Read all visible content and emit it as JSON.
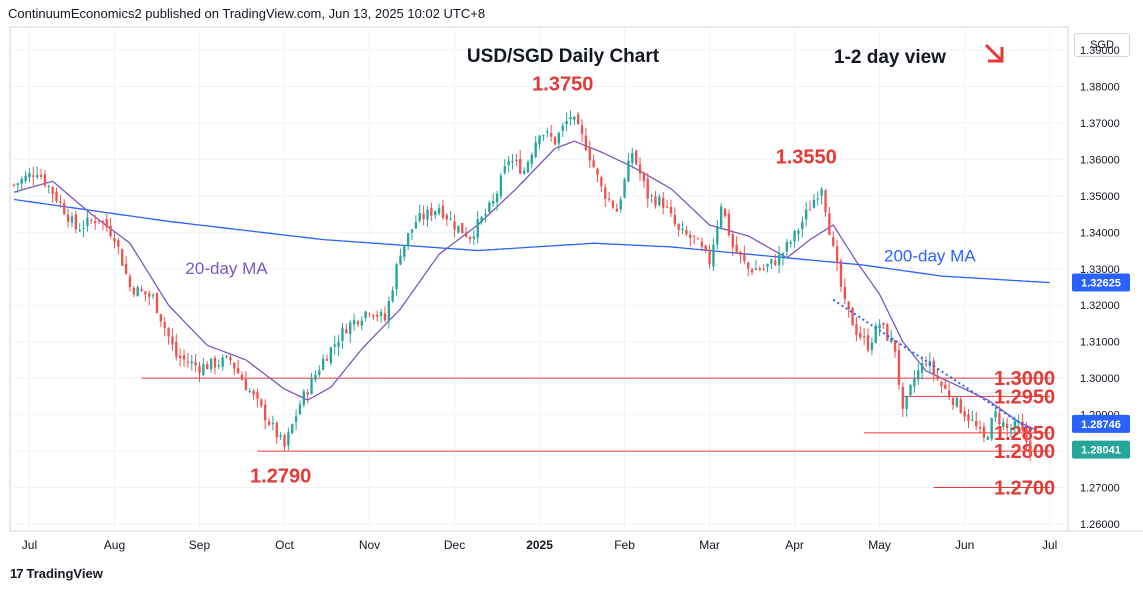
{
  "header": {
    "publisher": "ContinuumEconomics2 published on TradingView.com, Jun 13, 2025 10:02 UTC+8"
  },
  "footer": {
    "brand": "TradingView",
    "logo": "17"
  },
  "currency": "SGD",
  "colors": {
    "up": "#26a69a",
    "down": "#ef5350",
    "ma20": "#7e57c2",
    "ma200": "#2962ff",
    "level_line": "#e53935",
    "level_text": "#e53935",
    "trend": "#2962ff",
    "arrow": "#e53935"
  },
  "chart_data": {
    "type": "candlestick",
    "title": "USD/SGD Daily Chart",
    "subtitle": "1-2 day view",
    "direction_arrow": "down-right",
    "ylim": [
      1.26,
      1.39
    ],
    "y_ticks": [
      "1.26000",
      "1.27000",
      "1.28000",
      "1.29000",
      "1.30000",
      "1.31000",
      "1.32000",
      "1.33000",
      "1.34000",
      "1.35000",
      "1.36000",
      "1.37000",
      "1.38000",
      "1.39000"
    ],
    "x_labels": [
      "Jul",
      "Aug",
      "Sep",
      "Oct",
      "Nov",
      "Dec",
      "2025",
      "Feb",
      "Mar",
      "Apr",
      "May",
      "Jun",
      "Jul"
    ],
    "x_label_index": [
      4,
      26,
      48,
      70,
      92,
      114,
      136,
      158,
      180,
      202,
      224,
      246,
      268
    ],
    "grid": true,
    "price_badges": [
      {
        "value": "1.32625",
        "color": "#2962ff",
        "price": 1.32625
      },
      {
        "value": "1.28746",
        "color": "#2962ff",
        "price": 1.28746
      },
      {
        "value": "1.28041",
        "color": "#26a69a",
        "price": 1.28041
      }
    ],
    "levels": [
      {
        "label": "1.3000",
        "price": 1.3,
        "from_index": 33,
        "to_index": 263
      },
      {
        "label": "1.2950",
        "price": 1.295,
        "from_index": 230,
        "to_index": 263
      },
      {
        "label": "1.2850",
        "price": 1.285,
        "from_index": 220,
        "to_index": 263
      },
      {
        "label": "1.2800",
        "price": 1.28,
        "from_index": 63,
        "to_index": 263
      },
      {
        "label": "1.2700",
        "price": 1.27,
        "from_index": 238,
        "to_index": 263
      }
    ],
    "annotations": [
      {
        "text": "1.3750",
        "index": 142,
        "price": 1.375,
        "position": "above"
      },
      {
        "text": "1.3550",
        "index": 205,
        "price": 1.355,
        "position": "above"
      },
      {
        "text": "1.2790",
        "index": 69,
        "price": 1.279,
        "position": "below"
      }
    ],
    "ma_labels": [
      {
        "text": "20-day MA",
        "color": "#7e57c2",
        "index": 55,
        "price": 1.3285
      },
      {
        "text": "200-day MA",
        "color": "#2962ff",
        "index": 237,
        "price": 1.332
      }
    ],
    "trendline": {
      "from": {
        "index": 212,
        "price": 1.3215
      },
      "to": {
        "index": 262,
        "price": 1.2865
      }
    },
    "anchors": [
      [
        0,
        1.353
      ],
      [
        6,
        1.357
      ],
      [
        12,
        1.348
      ],
      [
        16,
        1.341
      ],
      [
        22,
        1.344
      ],
      [
        26,
        1.339
      ],
      [
        30,
        1.325
      ],
      [
        36,
        1.322
      ],
      [
        42,
        1.306
      ],
      [
        48,
        1.303
      ],
      [
        56,
        1.305
      ],
      [
        60,
        1.298
      ],
      [
        66,
        1.288
      ],
      [
        70,
        1.281
      ],
      [
        74,
        1.293
      ],
      [
        80,
        1.305
      ],
      [
        86,
        1.314
      ],
      [
        92,
        1.319
      ],
      [
        96,
        1.316
      ],
      [
        100,
        1.335
      ],
      [
        104,
        1.343
      ],
      [
        110,
        1.347
      ],
      [
        114,
        1.342
      ],
      [
        118,
        1.339
      ],
      [
        124,
        1.348
      ],
      [
        128,
        1.36
      ],
      [
        132,
        1.357
      ],
      [
        136,
        1.368
      ],
      [
        140,
        1.365
      ],
      [
        144,
        1.372
      ],
      [
        148,
        1.364
      ],
      [
        152,
        1.352
      ],
      [
        156,
        1.346
      ],
      [
        160,
        1.362
      ],
      [
        164,
        1.35
      ],
      [
        168,
        1.348
      ],
      [
        172,
        1.34
      ],
      [
        176,
        1.338
      ],
      [
        180,
        1.332
      ],
      [
        183,
        1.348
      ],
      [
        186,
        1.336
      ],
      [
        190,
        1.33
      ],
      [
        194,
        1.33
      ],
      [
        198,
        1.333
      ],
      [
        202,
        1.339
      ],
      [
        206,
        1.347
      ],
      [
        209,
        1.353
      ],
      [
        212,
        1.335
      ],
      [
        215,
        1.32
      ],
      [
        218,
        1.313
      ],
      [
        221,
        1.309
      ],
      [
        224,
        1.315
      ],
      [
        228,
        1.308
      ],
      [
        230,
        1.29
      ],
      [
        233,
        1.3
      ],
      [
        236,
        1.305
      ],
      [
        240,
        1.298
      ],
      [
        244,
        1.293
      ],
      [
        248,
        1.288
      ],
      [
        251,
        1.283
      ],
      [
        254,
        1.29
      ],
      [
        257,
        1.286
      ],
      [
        260,
        1.287
      ],
      [
        263,
        1.2804
      ]
    ],
    "ma20_points": [
      [
        0,
        1.351
      ],
      [
        10,
        1.354
      ],
      [
        20,
        1.345
      ],
      [
        30,
        1.337
      ],
      [
        40,
        1.32
      ],
      [
        50,
        1.309
      ],
      [
        60,
        1.305
      ],
      [
        70,
        1.297
      ],
      [
        76,
        1.294
      ],
      [
        82,
        1.2975
      ],
      [
        90,
        1.308
      ],
      [
        100,
        1.319
      ],
      [
        110,
        1.334
      ],
      [
        120,
        1.342
      ],
      [
        130,
        1.352
      ],
      [
        140,
        1.363
      ],
      [
        145,
        1.365
      ],
      [
        152,
        1.362
      ],
      [
        160,
        1.358
      ],
      [
        170,
        1.352
      ],
      [
        180,
        1.342
      ],
      [
        190,
        1.339
      ],
      [
        200,
        1.333
      ],
      [
        206,
        1.338
      ],
      [
        212,
        1.342
      ],
      [
        218,
        1.332
      ],
      [
        224,
        1.323
      ],
      [
        230,
        1.31
      ],
      [
        236,
        1.302
      ],
      [
        244,
        1.298
      ],
      [
        252,
        1.294
      ],
      [
        260,
        1.288
      ],
      [
        264,
        1.286
      ]
    ],
    "ma200_points": [
      [
        0,
        1.349
      ],
      [
        40,
        1.343
      ],
      [
        80,
        1.338
      ],
      [
        120,
        1.335
      ],
      [
        150,
        1.337
      ],
      [
        170,
        1.336
      ],
      [
        200,
        1.333
      ],
      [
        220,
        1.331
      ],
      [
        240,
        1.328
      ],
      [
        268,
        1.3262
      ]
    ]
  }
}
